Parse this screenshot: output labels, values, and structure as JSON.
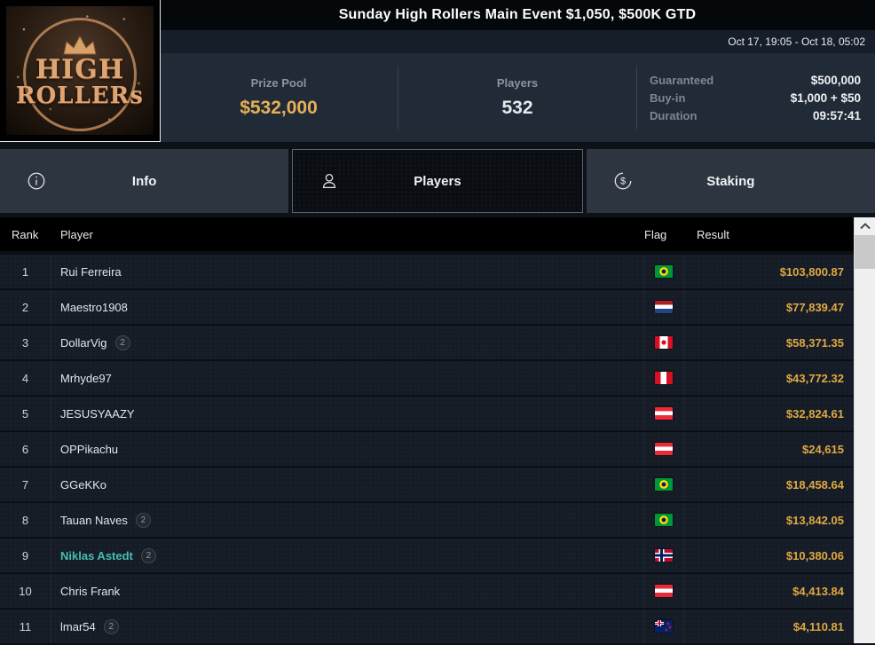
{
  "header": {
    "title": "Sunday High Rollers Main Event $1,050, $500K GTD",
    "date_range": "Oct 17, 19:05 - Oct 18, 05:02"
  },
  "logo": {
    "line1": "HIGH",
    "line2": "ROLLERs"
  },
  "stats": {
    "prize_pool_label": "Prize Pool",
    "prize_pool_value": "$532,000",
    "players_label": "Players",
    "players_value": "532",
    "details": [
      {
        "label": "Guaranteed",
        "value": "$500,000"
      },
      {
        "label": "Buy-in",
        "value": "$1,000 + $50"
      },
      {
        "label": "Duration",
        "value": "09:57:41"
      }
    ]
  },
  "tabs": [
    {
      "label": "Info",
      "active": false
    },
    {
      "label": "Players",
      "active": true
    },
    {
      "label": "Staking",
      "active": false
    }
  ],
  "icons": {
    "info_tab": "info-circle",
    "players_tab": "person-silhouette",
    "staking_tab": "dollar-circle",
    "scrollbar_top": "chevron-up"
  },
  "table": {
    "columns": [
      "Rank",
      "Player",
      "Flag",
      "Result"
    ],
    "rows": [
      {
        "rank": "1",
        "player": "Rui Ferreira",
        "badge": "",
        "flag": "br",
        "result": "$103,800.87",
        "highlight": false
      },
      {
        "rank": "2",
        "player": "Maestro1908",
        "badge": "",
        "flag": "nl",
        "result": "$77,839.47",
        "highlight": false
      },
      {
        "rank": "3",
        "player": "DollarVig",
        "badge": "2",
        "flag": "ca",
        "result": "$58,371.35",
        "highlight": false
      },
      {
        "rank": "4",
        "player": "Mrhyde97",
        "badge": "",
        "flag": "pe",
        "result": "$43,772.32",
        "highlight": false
      },
      {
        "rank": "5",
        "player": "JESUSYAAZY",
        "badge": "",
        "flag": "at",
        "result": "$32,824.61",
        "highlight": false
      },
      {
        "rank": "6",
        "player": "OPPikachu",
        "badge": "",
        "flag": "at",
        "result": "$24,615",
        "highlight": false
      },
      {
        "rank": "7",
        "player": "GGeKKo",
        "badge": "",
        "flag": "br",
        "result": "$18,458.64",
        "highlight": false
      },
      {
        "rank": "8",
        "player": "Tauan Naves",
        "badge": "2",
        "flag": "br",
        "result": "$13,842.05",
        "highlight": false
      },
      {
        "rank": "9",
        "player": "Niklas Astedt",
        "badge": "2",
        "flag": "no",
        "result": "$10,380.06",
        "highlight": true
      },
      {
        "rank": "10",
        "player": "Chris Frank",
        "badge": "",
        "flag": "at",
        "result": "$4,413.84",
        "highlight": false
      },
      {
        "rank": "11",
        "player": "lmar54",
        "badge": "2",
        "flag": "nz",
        "result": "$4,110.81",
        "highlight": false
      }
    ]
  },
  "colors": {
    "accent_gold": "#e7b054",
    "result_gold": "#dfa843",
    "highlight_teal": "#45bdb2",
    "panel_bg": "#212b37",
    "row_bg": "#151c26",
    "tab_bg": "#2d3640"
  }
}
